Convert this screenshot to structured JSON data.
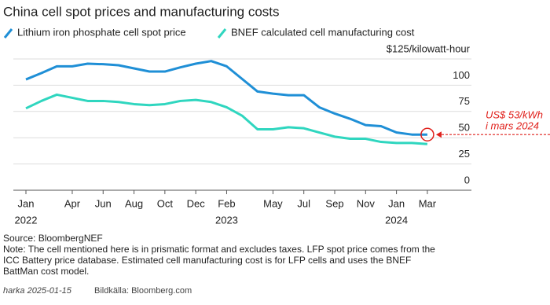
{
  "chart_data": {
    "type": "line",
    "title": "China cell spot prices and manufacturing costs",
    "categories": [
      "Jan",
      null,
      null,
      "Apr",
      null,
      "Jun",
      null,
      "Aug",
      null,
      "Oct",
      null,
      "Dec",
      null,
      "Feb",
      null,
      null,
      "May",
      null,
      "Jul",
      null,
      "Sep",
      null,
      "Nov",
      null,
      "Jan",
      null,
      "Mar"
    ],
    "category_years": [
      "2022",
      null,
      null,
      null,
      null,
      null,
      null,
      null,
      null,
      null,
      null,
      null,
      null,
      "2023",
      null,
      null,
      null,
      null,
      null,
      null,
      null,
      null,
      null,
      null,
      "2024",
      null,
      null
    ],
    "series": [
      {
        "name": "Lithium iron phosphate cell spot price",
        "color": "#1f8fd6",
        "values": [
          105.5,
          111.5,
          118,
          118,
          120.5,
          120,
          119,
          116,
          113,
          113,
          117,
          120.5,
          123,
          118,
          106,
          94,
          92,
          90.5,
          90.5,
          79,
          73,
          68,
          62,
          61,
          55,
          53,
          53
        ]
      },
      {
        "name": "BNEF calculated cell manufacturing cost",
        "color": "#2fd6bf",
        "values": [
          78,
          85,
          91,
          88,
          85,
          85,
          84,
          82,
          81,
          82,
          85,
          86,
          84,
          79,
          71,
          58,
          58,
          60,
          59,
          55,
          51,
          49,
          49,
          46,
          45,
          45,
          44
        ]
      }
    ],
    "ylim": [
      0,
      125
    ],
    "yticks": [
      0,
      25,
      50,
      75,
      100,
      {
        "value": 125,
        "label": "$125/kilowatt-hour"
      }
    ],
    "grid": true,
    "annotation": {
      "lines": [
        "US$ 53/kWh",
        "i mars 2024"
      ],
      "color": "#e0201b"
    },
    "source": "Source: BloombergNEF",
    "note_lines": [
      "Note: The cell mentioned here is in prismatic format and excludes taxes. LFP spot price comes from the",
      "ICC Battery price database. Estimated cell manufacturing cost is for LFP cells and uses the BNEF",
      "BattMan cost model."
    ],
    "credit_author": "harka 2025-01-15",
    "credit_source": "Bildkälla: Bloomberg.com"
  }
}
